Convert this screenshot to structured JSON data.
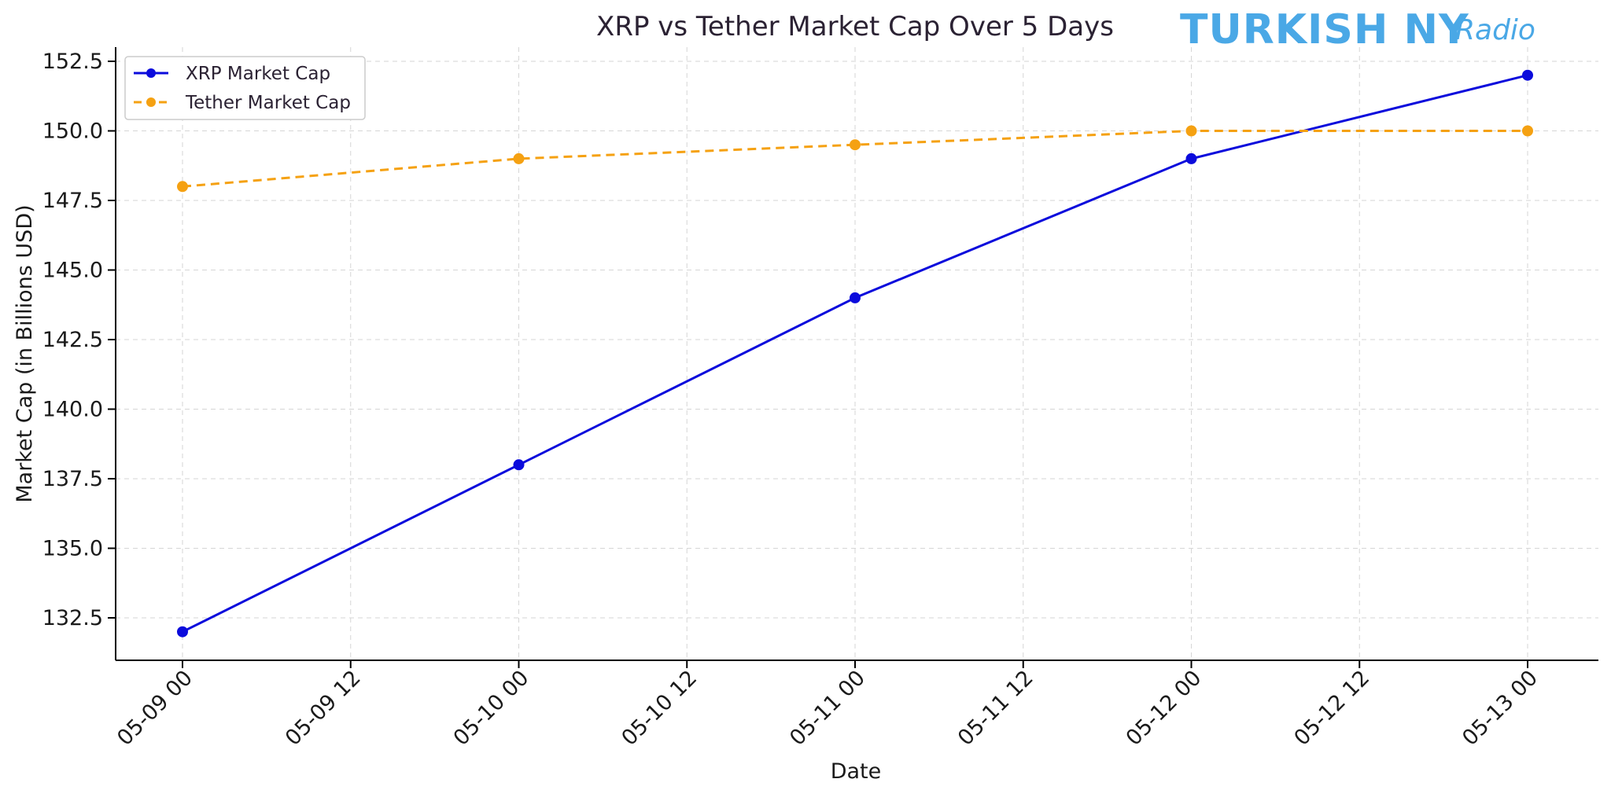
{
  "chart_data": {
    "type": "line",
    "title": "XRP vs Tether Market Cap Over 5 Days",
    "xlabel": "Date",
    "ylabel": "Market Cap (in Billions USD)",
    "x": [
      "05-09 00",
      "05-10 00",
      "05-11 00",
      "05-12 00",
      "05-13 00"
    ],
    "x_ticks": [
      "05-09 00",
      "05-09 12",
      "05-10 00",
      "05-10 12",
      "05-11 00",
      "05-11 12",
      "05-12 00",
      "05-12 12",
      "05-13 00"
    ],
    "y_ticks": [
      "132.5",
      "135.0",
      "137.5",
      "140.0",
      "142.5",
      "145.0",
      "147.5",
      "150.0",
      "152.5"
    ],
    "ylim": [
      131.0,
      153.0
    ],
    "grid": true,
    "legend_position": "top-left",
    "series": [
      {
        "name": "XRP Market Cap",
        "values": [
          132,
          138,
          144,
          149,
          152
        ],
        "color": "#0b0bdc",
        "style": "solid",
        "marker": "circle"
      },
      {
        "name": "Tether Market Cap",
        "values": [
          148,
          149,
          149.5,
          150,
          150
        ],
        "color": "#f5a112",
        "style": "dashed",
        "marker": "circle"
      }
    ]
  },
  "watermark": {
    "text": "TURKISH NY",
    "script_text": "Radio",
    "color": "#4aa8e6"
  }
}
